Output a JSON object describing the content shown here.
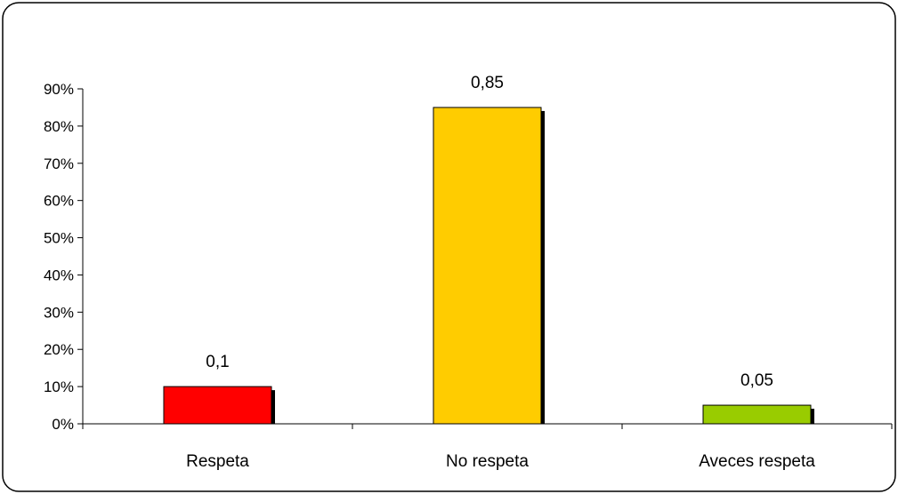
{
  "chart_data": {
    "type": "bar",
    "categories": [
      "Respeta",
      "No respeta",
      "Aveces respeta"
    ],
    "values": [
      0.1,
      0.85,
      0.05
    ],
    "data_labels": [
      "0,1",
      "0,85",
      "0,05"
    ],
    "bar_colors": [
      "#ff0000",
      "#ffcc00",
      "#99cc00"
    ],
    "ylim": [
      0,
      0.9
    ],
    "yticks": [
      0,
      0.1,
      0.2,
      0.3,
      0.4,
      0.5,
      0.6,
      0.7,
      0.8,
      0.9
    ],
    "ytick_labels": [
      "0%",
      "10%",
      "20%",
      "30%",
      "40%",
      "50%",
      "60%",
      "70%",
      "80%",
      "90%"
    ],
    "grid": false,
    "legend": "none"
  }
}
